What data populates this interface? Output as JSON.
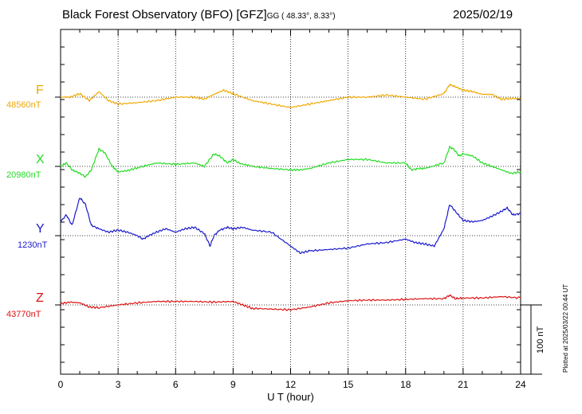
{
  "title": {
    "main": "Black Forest Observatory (BFO)  [GFZ]",
    "sub": "GG ( 48.33°,   8.33°)",
    "date": "2025/02/19"
  },
  "footer": {
    "plotted": "Plotted at 2025/03/22 00:44 UT",
    "scale_label": "100 nT"
  },
  "chart_data": {
    "type": "line",
    "title": "Black Forest Observatory (BFO)  [GFZ]",
    "xlabel": "U T (hour)",
    "ylabel": "",
    "xlim": [
      0,
      24
    ],
    "x_ticks": [
      "0",
      "3",
      "6",
      "9",
      "12",
      "15",
      "18",
      "21",
      "24"
    ],
    "scale_nT": 100,
    "grid": true,
    "series": [
      {
        "name": "F",
        "baseline_label": "48560nT",
        "color": "#f0a800",
        "x": [
          0,
          0.5,
          1,
          1.5,
          2,
          2.5,
          3,
          4,
          5,
          6,
          7,
          7.5,
          8,
          8.5,
          9,
          10,
          11,
          12,
          13,
          14,
          15,
          16,
          17,
          18,
          19,
          20,
          20.3,
          20.6,
          21,
          21.5,
          22,
          22.5,
          23,
          23.5,
          24
        ],
        "y": [
          0,
          0,
          5,
          -5,
          8,
          -5,
          -10,
          -8,
          -5,
          0,
          0,
          -3,
          4,
          10,
          5,
          -5,
          -10,
          -15,
          -10,
          -5,
          0,
          0,
          3,
          0,
          -3,
          5,
          18,
          15,
          10,
          8,
          4,
          4,
          -3,
          -2,
          -2
        ]
      },
      {
        "name": "X",
        "baseline_label": "20980nT",
        "color": "#22dd22",
        "x": [
          0,
          0.3,
          0.6,
          1,
          1.3,
          1.6,
          2,
          2.3,
          2.7,
          3,
          3.5,
          4,
          5,
          6,
          7,
          7.5,
          8,
          8.3,
          8.7,
          9,
          9.3,
          10,
          11,
          12,
          12.5,
          13,
          14,
          15,
          16,
          17,
          18,
          18.3,
          18.7,
          19,
          20,
          20.3,
          20.5,
          20.8,
          21,
          21.5,
          22,
          22.5,
          23,
          23.5,
          24
        ],
        "y": [
          0,
          5,
          -5,
          -10,
          -15,
          -5,
          25,
          20,
          0,
          -8,
          -6,
          -2,
          5,
          3,
          5,
          0,
          18,
          15,
          5,
          10,
          5,
          0,
          -3,
          -5,
          -5,
          -3,
          5,
          10,
          10,
          5,
          5,
          -5,
          -3,
          -3,
          5,
          28,
          25,
          15,
          18,
          15,
          5,
          0,
          -5,
          -10,
          -8
        ]
      },
      {
        "name": "Y",
        "baseline_label": "1230nT",
        "color": "#1a1acc",
        "x": [
          0,
          0.3,
          0.6,
          1,
          1.3,
          1.6,
          2,
          2.5,
          3,
          3.5,
          4,
          4.3,
          4.6,
          5,
          5.5,
          6,
          6.5,
          7,
          7.5,
          7.8,
          8,
          8.3,
          8.7,
          9,
          9.5,
          10,
          11,
          12,
          12.5,
          13,
          14,
          15,
          16,
          17,
          18,
          18.5,
          19,
          19.5,
          20,
          20.3,
          20.6,
          21,
          21.5,
          22,
          22.5,
          23,
          23.3,
          23.6,
          24
        ],
        "y": [
          20,
          30,
          15,
          55,
          45,
          15,
          10,
          5,
          8,
          5,
          0,
          -5,
          0,
          5,
          10,
          5,
          10,
          12,
          3,
          -15,
          0,
          8,
          12,
          10,
          12,
          8,
          5,
          -15,
          -25,
          -22,
          -20,
          -18,
          -12,
          -10,
          -5,
          -10,
          -12,
          -15,
          10,
          45,
          35,
          22,
          20,
          22,
          28,
          35,
          40,
          30,
          32
        ]
      },
      {
        "name": "Z",
        "baseline_label": "43770nT",
        "color": "#dd1111",
        "x": [
          0,
          0.5,
          1,
          1.5,
          2,
          3,
          4,
          5,
          6,
          7,
          8,
          9,
          9.5,
          10,
          11,
          12,
          13,
          14,
          15,
          16,
          17,
          18,
          19,
          20,
          20.3,
          20.6,
          21,
          22,
          23,
          24
        ],
        "y": [
          2,
          4,
          3,
          -3,
          -4,
          0,
          3,
          5,
          5,
          5,
          4,
          5,
          0,
          -5,
          -6,
          -7,
          -3,
          3,
          6,
          7,
          7,
          8,
          9,
          9,
          14,
          9,
          10,
          10,
          12,
          10
        ]
      }
    ]
  }
}
